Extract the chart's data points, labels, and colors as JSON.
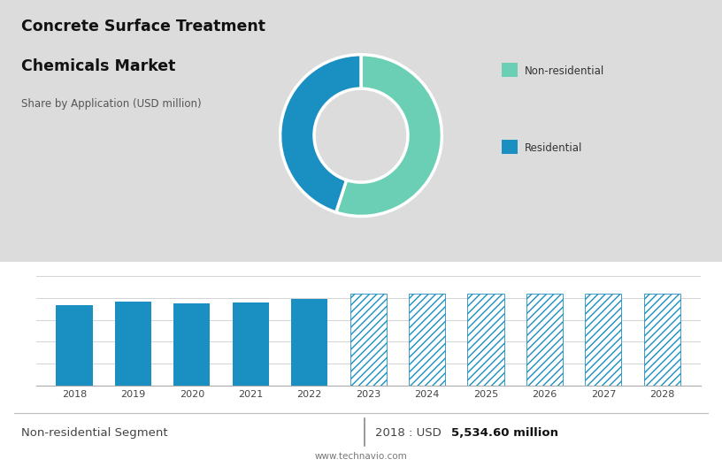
{
  "title_line1": "Concrete Surface Treatment",
  "title_line2": "Chemicals Market",
  "subtitle": "Share by Application (USD million)",
  "bg_color_top": "#dcdcdc",
  "bg_color_bottom": "#ffffff",
  "bar_years": [
    2018,
    2019,
    2020,
    2021,
    2022,
    2023,
    2024,
    2025,
    2026,
    2027,
    2028
  ],
  "bar_values": [
    5534,
    5720,
    5620,
    5700,
    5950,
    6300,
    6300,
    6300,
    6300,
    6300,
    6300
  ],
  "bar_solid_color": "#1a8fc1",
  "bar_hatch_color": "#1a8fc1",
  "bar_hatch_facecolor": "white",
  "bar_hatch_pattern": "////",
  "solid_years": [
    2018,
    2019,
    2020,
    2021,
    2022
  ],
  "hatch_years": [
    2023,
    2024,
    2025,
    2026,
    2027,
    2028
  ],
  "donut_values": [
    55,
    45
  ],
  "donut_colors": [
    "#6bcfb5",
    "#1a8fc1"
  ],
  "legend_label_nonres": "Non-residential",
  "legend_label_res": "Residential",
  "footer_left": "Non-residential Segment",
  "footer_right_prefix": "2018 : USD ",
  "footer_right_bold": "5,534.60 million",
  "footer_url": "www.technavio.com",
  "ymin": 0,
  "ymax": 8500,
  "grid_lines": [
    1500,
    3000,
    4500,
    6000,
    7500
  ],
  "bar_width": 0.62
}
